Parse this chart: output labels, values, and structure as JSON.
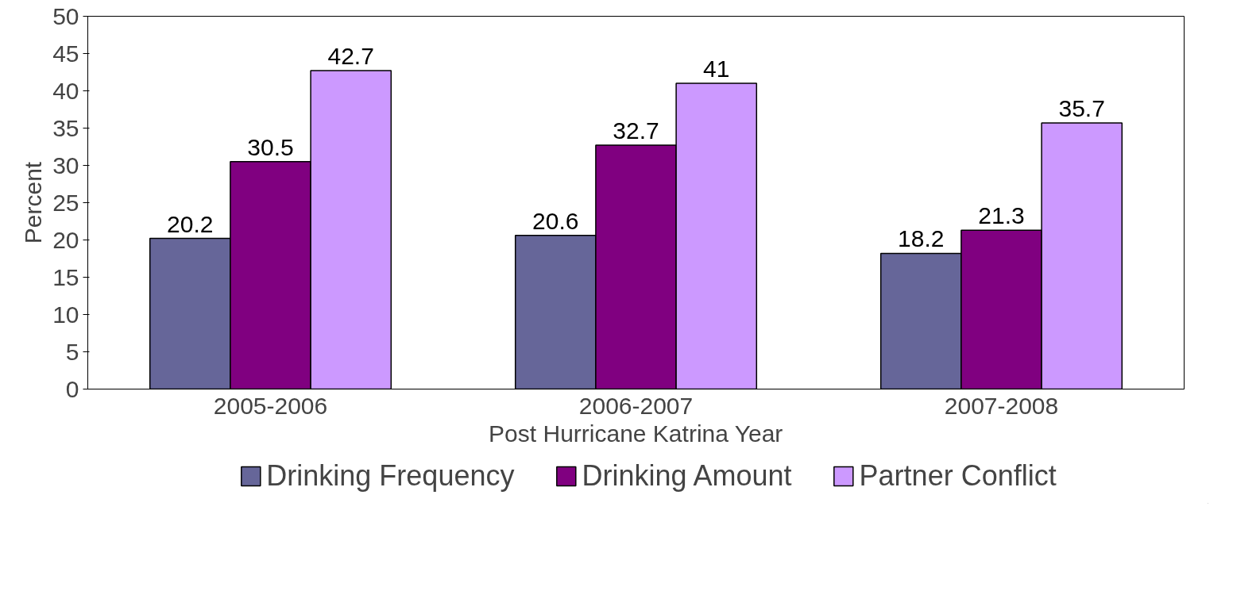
{
  "chart_data": {
    "type": "bar",
    "xlabel": "Post Hurricane Katrina Year",
    "ylabel": "Percent",
    "categories": [
      "2005-2006",
      "2006-2007",
      "2007-2008"
    ],
    "series": [
      {
        "name": "Drinking Frequency",
        "color": "#666699",
        "values": [
          20.2,
          20.6,
          18.2
        ]
      },
      {
        "name": "Drinking Amount",
        "color": "#800080",
        "values": [
          30.5,
          32.7,
          21.3
        ]
      },
      {
        "name": "Partner Conflict",
        "color": "#cc99ff",
        "values": [
          42.7,
          41,
          35.7
        ]
      }
    ],
    "ylim": [
      0,
      50
    ],
    "yticks": [
      0,
      5,
      10,
      15,
      20,
      25,
      30,
      35,
      40,
      45,
      50
    ],
    "data_labels": true,
    "legend": "bottom",
    "grid": false
  }
}
